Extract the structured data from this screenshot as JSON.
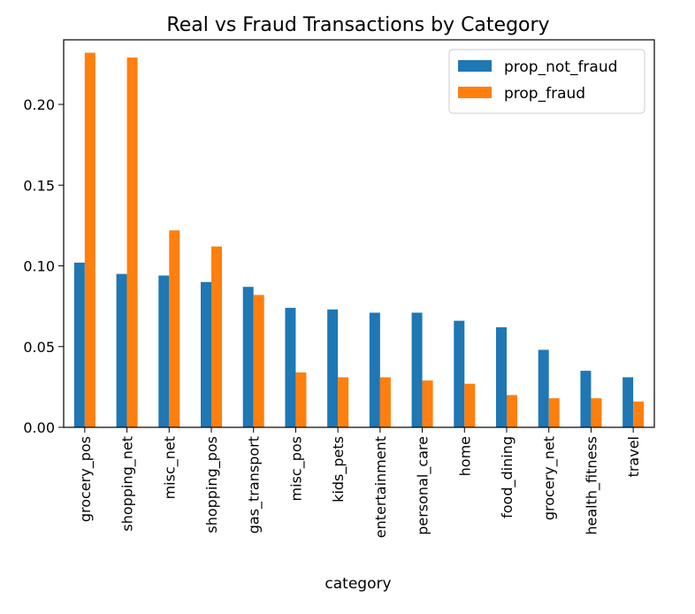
{
  "chart_data": {
    "type": "bar",
    "title": "Real vs Fraud Transactions by Category",
    "xlabel": "category",
    "ylabel": "",
    "ylim": [
      0,
      0.24
    ],
    "yticks": [
      "0.00",
      "0.05",
      "0.10",
      "0.15",
      "0.20"
    ],
    "categories": [
      "grocery_pos",
      "shopping_net",
      "misc_net",
      "shopping_pos",
      "gas_transport",
      "misc_pos",
      "kids_pets",
      "entertainment",
      "personal_care",
      "home",
      "food_dining",
      "grocery_net",
      "health_fitness",
      "travel"
    ],
    "series": [
      {
        "name": "prop_not_fraud",
        "color": "#1f77b4",
        "values": [
          0.102,
          0.095,
          0.094,
          0.09,
          0.087,
          0.074,
          0.073,
          0.071,
          0.071,
          0.066,
          0.062,
          0.048,
          0.035,
          0.031
        ]
      },
      {
        "name": "prop_fraud",
        "color": "#ff7f0e",
        "values": [
          0.232,
          0.229,
          0.122,
          0.112,
          0.082,
          0.034,
          0.031,
          0.031,
          0.029,
          0.027,
          0.02,
          0.018,
          0.018,
          0.016
        ]
      }
    ],
    "grid": false,
    "legend": "top-right"
  }
}
